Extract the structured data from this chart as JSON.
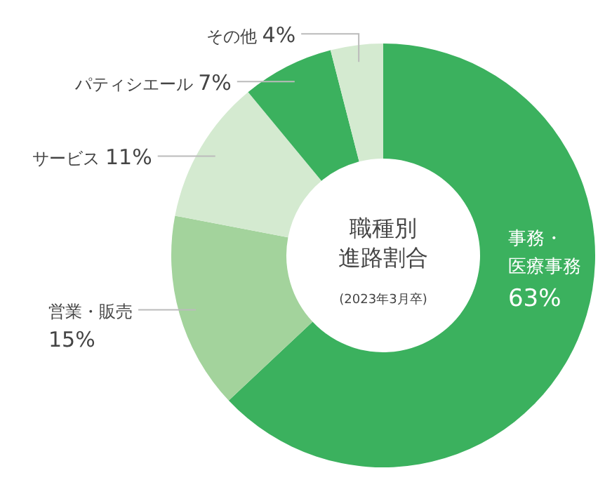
{
  "chart_data": {
    "type": "donut",
    "title": "職種別進路割合",
    "subtitle": "(2023年3月卒)",
    "categories": [
      "事務・医療事務",
      "営業・販売",
      "サービス",
      "パティシエール",
      "その他"
    ],
    "values": [
      63,
      15,
      11,
      7,
      4
    ],
    "value_labels": [
      "63%",
      "15%",
      "11%",
      "7%",
      "4%"
    ],
    "colors": [
      "#3bb15e",
      "#a3d39c",
      "#d4ead0",
      "#3bb15e",
      "#d4ead0"
    ]
  }
}
